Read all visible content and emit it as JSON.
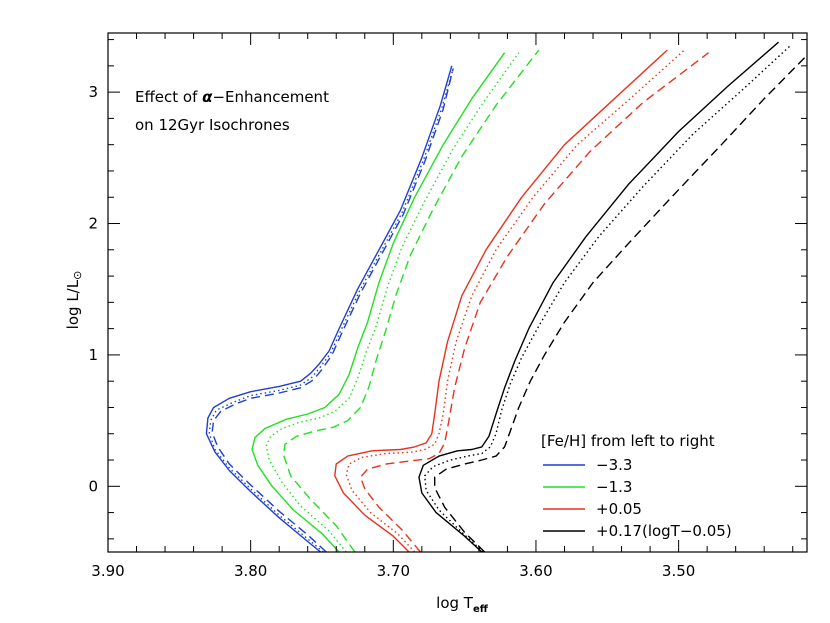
{
  "chart_data": {
    "type": "line",
    "xlabel": "log T",
    "xlabel_sub": "eff",
    "ylabel": "log L/L",
    "ylabel_sym": "⊙",
    "xlim": [
      3.9,
      3.41
    ],
    "ylim": [
      -0.5,
      3.45
    ],
    "x_ticks": [
      3.9,
      3.8,
      3.7,
      3.6,
      3.5
    ],
    "x_tick_labels": [
      "3.90",
      "3.80",
      "3.70",
      "3.60",
      "3.50"
    ],
    "y_ticks": [
      0,
      1,
      2,
      3
    ],
    "y_tick_labels": [
      "0",
      "1",
      "2",
      "3"
    ],
    "annotation": {
      "line1_prefix": "Effect of ",
      "line1_symbol": "α",
      "line1_suffix": "−Enhancement",
      "line2": "on 12Gyr Isochrones"
    },
    "legend": {
      "title": "[Fe/H] from left to right",
      "position": "bottom-right",
      "entries": [
        {
          "label": "−3.3",
          "color": "#1f3fcf"
        },
        {
          "label": "−1.3",
          "color": "#22e022"
        },
        {
          "label": "+0.05",
          "color": "#e8321e"
        },
        {
          "label": "+0.17(logT−0.05)",
          "color": "#000000"
        }
      ]
    },
    "series": [
      {
        "color": "#1f3fcf",
        "dash": "solid",
        "points": [
          [
            3.751,
            -0.5
          ],
          [
            3.76,
            -0.42
          ],
          [
            3.78,
            -0.24
          ],
          [
            3.8,
            -0.04
          ],
          [
            3.815,
            0.12
          ],
          [
            3.825,
            0.26
          ],
          [
            3.831,
            0.4
          ],
          [
            3.83,
            0.52
          ],
          [
            3.826,
            0.6
          ],
          [
            3.815,
            0.67
          ],
          [
            3.8,
            0.72
          ],
          [
            3.78,
            0.76
          ],
          [
            3.765,
            0.8
          ],
          [
            3.758,
            0.86
          ],
          [
            3.752,
            0.93
          ],
          [
            3.745,
            1.03
          ],
          [
            3.738,
            1.2
          ],
          [
            3.725,
            1.5
          ],
          [
            3.71,
            1.8
          ],
          [
            3.695,
            2.1
          ],
          [
            3.68,
            2.5
          ],
          [
            3.667,
            2.9
          ],
          [
            3.659,
            3.2
          ]
        ]
      },
      {
        "color": "#1f3fcf",
        "dash": "dotted",
        "points": [
          [
            3.749,
            -0.5
          ],
          [
            3.76,
            -0.4
          ],
          [
            3.78,
            -0.22
          ],
          [
            3.8,
            -0.02
          ],
          [
            3.815,
            0.14
          ],
          [
            3.825,
            0.28
          ],
          [
            3.829,
            0.4
          ],
          [
            3.828,
            0.5
          ],
          [
            3.824,
            0.58
          ],
          [
            3.812,
            0.64
          ],
          [
            3.8,
            0.69
          ],
          [
            3.78,
            0.73
          ],
          [
            3.765,
            0.77
          ],
          [
            3.757,
            0.83
          ],
          [
            3.751,
            0.91
          ],
          [
            3.744,
            1.01
          ],
          [
            3.737,
            1.18
          ],
          [
            3.724,
            1.48
          ],
          [
            3.709,
            1.78
          ],
          [
            3.694,
            2.08
          ],
          [
            3.679,
            2.48
          ],
          [
            3.666,
            2.88
          ],
          [
            3.658,
            3.18
          ]
        ]
      },
      {
        "color": "#1f3fcf",
        "dash": "dashed",
        "points": [
          [
            3.747,
            -0.5
          ],
          [
            3.76,
            -0.37
          ],
          [
            3.78,
            -0.19
          ],
          [
            3.8,
            0.01
          ],
          [
            3.815,
            0.17
          ],
          [
            3.823,
            0.3
          ],
          [
            3.827,
            0.41
          ],
          [
            3.826,
            0.5
          ],
          [
            3.821,
            0.57
          ],
          [
            3.81,
            0.63
          ],
          [
            3.8,
            0.67
          ],
          [
            3.78,
            0.71
          ],
          [
            3.765,
            0.75
          ],
          [
            3.756,
            0.81
          ],
          [
            3.75,
            0.89
          ],
          [
            3.743,
            1.0
          ],
          [
            3.736,
            1.17
          ],
          [
            3.723,
            1.47
          ],
          [
            3.708,
            1.77
          ],
          [
            3.693,
            2.07
          ],
          [
            3.678,
            2.47
          ],
          [
            3.665,
            2.87
          ],
          [
            3.658,
            3.18
          ]
        ]
      },
      {
        "color": "#22e022",
        "dash": "solid",
        "points": [
          [
            3.738,
            -0.5
          ],
          [
            3.75,
            -0.36
          ],
          [
            3.77,
            -0.18
          ],
          [
            3.785,
            0.0
          ],
          [
            3.795,
            0.16
          ],
          [
            3.799,
            0.28
          ],
          [
            3.797,
            0.37
          ],
          [
            3.79,
            0.44
          ],
          [
            3.775,
            0.51
          ],
          [
            3.76,
            0.55
          ],
          [
            3.748,
            0.6
          ],
          [
            3.738,
            0.7
          ],
          [
            3.731,
            0.85
          ],
          [
            3.725,
            1.05
          ],
          [
            3.718,
            1.25
          ],
          [
            3.71,
            1.55
          ],
          [
            3.7,
            1.85
          ],
          [
            3.685,
            2.2
          ],
          [
            3.665,
            2.6
          ],
          [
            3.645,
            2.95
          ],
          [
            3.622,
            3.3
          ]
        ]
      },
      {
        "color": "#22e022",
        "dash": "dotted",
        "points": [
          [
            3.733,
            -0.5
          ],
          [
            3.745,
            -0.34
          ],
          [
            3.765,
            -0.15
          ],
          [
            3.778,
            0.03
          ],
          [
            3.787,
            0.2
          ],
          [
            3.789,
            0.31
          ],
          [
            3.786,
            0.38
          ],
          [
            3.778,
            0.44
          ],
          [
            3.765,
            0.49
          ],
          [
            3.752,
            0.52
          ],
          [
            3.741,
            0.57
          ],
          [
            3.731,
            0.67
          ],
          [
            3.725,
            0.82
          ],
          [
            3.719,
            1.02
          ],
          [
            3.712,
            1.22
          ],
          [
            3.704,
            1.52
          ],
          [
            3.694,
            1.82
          ],
          [
            3.678,
            2.17
          ],
          [
            3.658,
            2.57
          ],
          [
            3.637,
            2.92
          ],
          [
            3.612,
            3.3
          ]
        ]
      },
      {
        "color": "#22e022",
        "dash": "dashed",
        "points": [
          [
            3.727,
            -0.5
          ],
          [
            3.74,
            -0.3
          ],
          [
            3.758,
            -0.1
          ],
          [
            3.772,
            0.08
          ],
          [
            3.777,
            0.24
          ],
          [
            3.776,
            0.32
          ],
          [
            3.768,
            0.38
          ],
          [
            3.755,
            0.42
          ],
          [
            3.742,
            0.45
          ],
          [
            3.732,
            0.5
          ],
          [
            3.723,
            0.6
          ],
          [
            3.717,
            0.76
          ],
          [
            3.712,
            0.96
          ],
          [
            3.706,
            1.16
          ],
          [
            3.698,
            1.46
          ],
          [
            3.688,
            1.76
          ],
          [
            3.672,
            2.11
          ],
          [
            3.652,
            2.51
          ],
          [
            3.628,
            2.9
          ],
          [
            3.598,
            3.32
          ]
        ]
      },
      {
        "color": "#e8321e",
        "dash": "solid",
        "points": [
          [
            3.689,
            -0.5
          ],
          [
            3.7,
            -0.38
          ],
          [
            3.72,
            -0.22
          ],
          [
            3.735,
            -0.05
          ],
          [
            3.741,
            0.08
          ],
          [
            3.74,
            0.17
          ],
          [
            3.732,
            0.23
          ],
          [
            3.715,
            0.27
          ],
          [
            3.695,
            0.28
          ],
          [
            3.685,
            0.3
          ],
          [
            3.677,
            0.33
          ],
          [
            3.673,
            0.4
          ],
          [
            3.671,
            0.55
          ],
          [
            3.668,
            0.8
          ],
          [
            3.662,
            1.1
          ],
          [
            3.652,
            1.45
          ],
          [
            3.635,
            1.8
          ],
          [
            3.61,
            2.2
          ],
          [
            3.58,
            2.6
          ],
          [
            3.545,
            2.95
          ],
          [
            3.508,
            3.32
          ]
        ]
      },
      {
        "color": "#e8321e",
        "dash": "dotted",
        "points": [
          [
            3.685,
            -0.5
          ],
          [
            3.697,
            -0.36
          ],
          [
            3.716,
            -0.2
          ],
          [
            3.729,
            -0.03
          ],
          [
            3.733,
            0.09
          ],
          [
            3.731,
            0.17
          ],
          [
            3.722,
            0.22
          ],
          [
            3.705,
            0.25
          ],
          [
            3.687,
            0.26
          ],
          [
            3.678,
            0.28
          ],
          [
            3.671,
            0.32
          ],
          [
            3.668,
            0.4
          ],
          [
            3.665,
            0.55
          ],
          [
            3.662,
            0.8
          ],
          [
            3.656,
            1.1
          ],
          [
            3.645,
            1.45
          ],
          [
            3.628,
            1.8
          ],
          [
            3.602,
            2.2
          ],
          [
            3.571,
            2.6
          ],
          [
            3.534,
            2.95
          ],
          [
            3.496,
            3.32
          ]
        ]
      },
      {
        "color": "#e8321e",
        "dash": "dashed",
        "points": [
          [
            3.681,
            -0.5
          ],
          [
            3.694,
            -0.33
          ],
          [
            3.71,
            -0.16
          ],
          [
            3.72,
            -0.02
          ],
          [
            3.723,
            0.07
          ],
          [
            3.718,
            0.13
          ],
          [
            3.705,
            0.17
          ],
          [
            3.69,
            0.19
          ],
          [
            3.675,
            0.21
          ],
          [
            3.668,
            0.25
          ],
          [
            3.664,
            0.33
          ],
          [
            3.661,
            0.5
          ],
          [
            3.657,
            0.75
          ],
          [
            3.65,
            1.05
          ],
          [
            3.639,
            1.4
          ],
          [
            3.62,
            1.75
          ],
          [
            3.594,
            2.15
          ],
          [
            3.562,
            2.55
          ],
          [
            3.525,
            2.92
          ],
          [
            3.479,
            3.3
          ]
        ]
      },
      {
        "color": "#000000",
        "dash": "solid",
        "points": [
          [
            3.638,
            -0.5
          ],
          [
            3.65,
            -0.38
          ],
          [
            3.67,
            -0.2
          ],
          [
            3.68,
            -0.05
          ],
          [
            3.682,
            0.07
          ],
          [
            3.679,
            0.16
          ],
          [
            3.668,
            0.23
          ],
          [
            3.655,
            0.27
          ],
          [
            3.645,
            0.28
          ],
          [
            3.638,
            0.3
          ],
          [
            3.633,
            0.38
          ],
          [
            3.628,
            0.55
          ],
          [
            3.622,
            0.75
          ],
          [
            3.615,
            0.95
          ],
          [
            3.605,
            1.2
          ],
          [
            3.588,
            1.55
          ],
          [
            3.565,
            1.9
          ],
          [
            3.535,
            2.3
          ],
          [
            3.5,
            2.7
          ],
          [
            3.465,
            3.05
          ],
          [
            3.43,
            3.38
          ]
        ]
      },
      {
        "color": "#000000",
        "dash": "dotted",
        "points": [
          [
            3.637,
            -0.5
          ],
          [
            3.65,
            -0.37
          ],
          [
            3.668,
            -0.18
          ],
          [
            3.677,
            -0.03
          ],
          [
            3.678,
            0.08
          ],
          [
            3.672,
            0.15
          ],
          [
            3.66,
            0.2
          ],
          [
            3.648,
            0.23
          ],
          [
            3.638,
            0.25
          ],
          [
            3.632,
            0.3
          ],
          [
            3.628,
            0.4
          ],
          [
            3.624,
            0.58
          ],
          [
            3.618,
            0.78
          ],
          [
            3.61,
            0.98
          ],
          [
            3.598,
            1.22
          ],
          [
            3.58,
            1.55
          ],
          [
            3.556,
            1.9
          ],
          [
            3.525,
            2.28
          ],
          [
            3.49,
            2.68
          ],
          [
            3.455,
            3.02
          ],
          [
            3.422,
            3.35
          ]
        ]
      },
      {
        "color": "#000000",
        "dash": "dashed",
        "points": [
          [
            3.636,
            -0.5
          ],
          [
            3.65,
            -0.35
          ],
          [
            3.664,
            -0.16
          ],
          [
            3.671,
            -0.01
          ],
          [
            3.671,
            0.07
          ],
          [
            3.663,
            0.13
          ],
          [
            3.65,
            0.17
          ],
          [
            3.638,
            0.2
          ],
          [
            3.628,
            0.23
          ],
          [
            3.622,
            0.3
          ],
          [
            3.618,
            0.42
          ],
          [
            3.612,
            0.6
          ],
          [
            3.604,
            0.8
          ],
          [
            3.594,
            1.0
          ],
          [
            3.58,
            1.25
          ],
          [
            3.56,
            1.55
          ],
          [
            3.535,
            1.85
          ],
          [
            3.505,
            2.2
          ],
          [
            3.47,
            2.6
          ],
          [
            3.44,
            2.95
          ],
          [
            3.41,
            3.28
          ]
        ]
      }
    ]
  }
}
